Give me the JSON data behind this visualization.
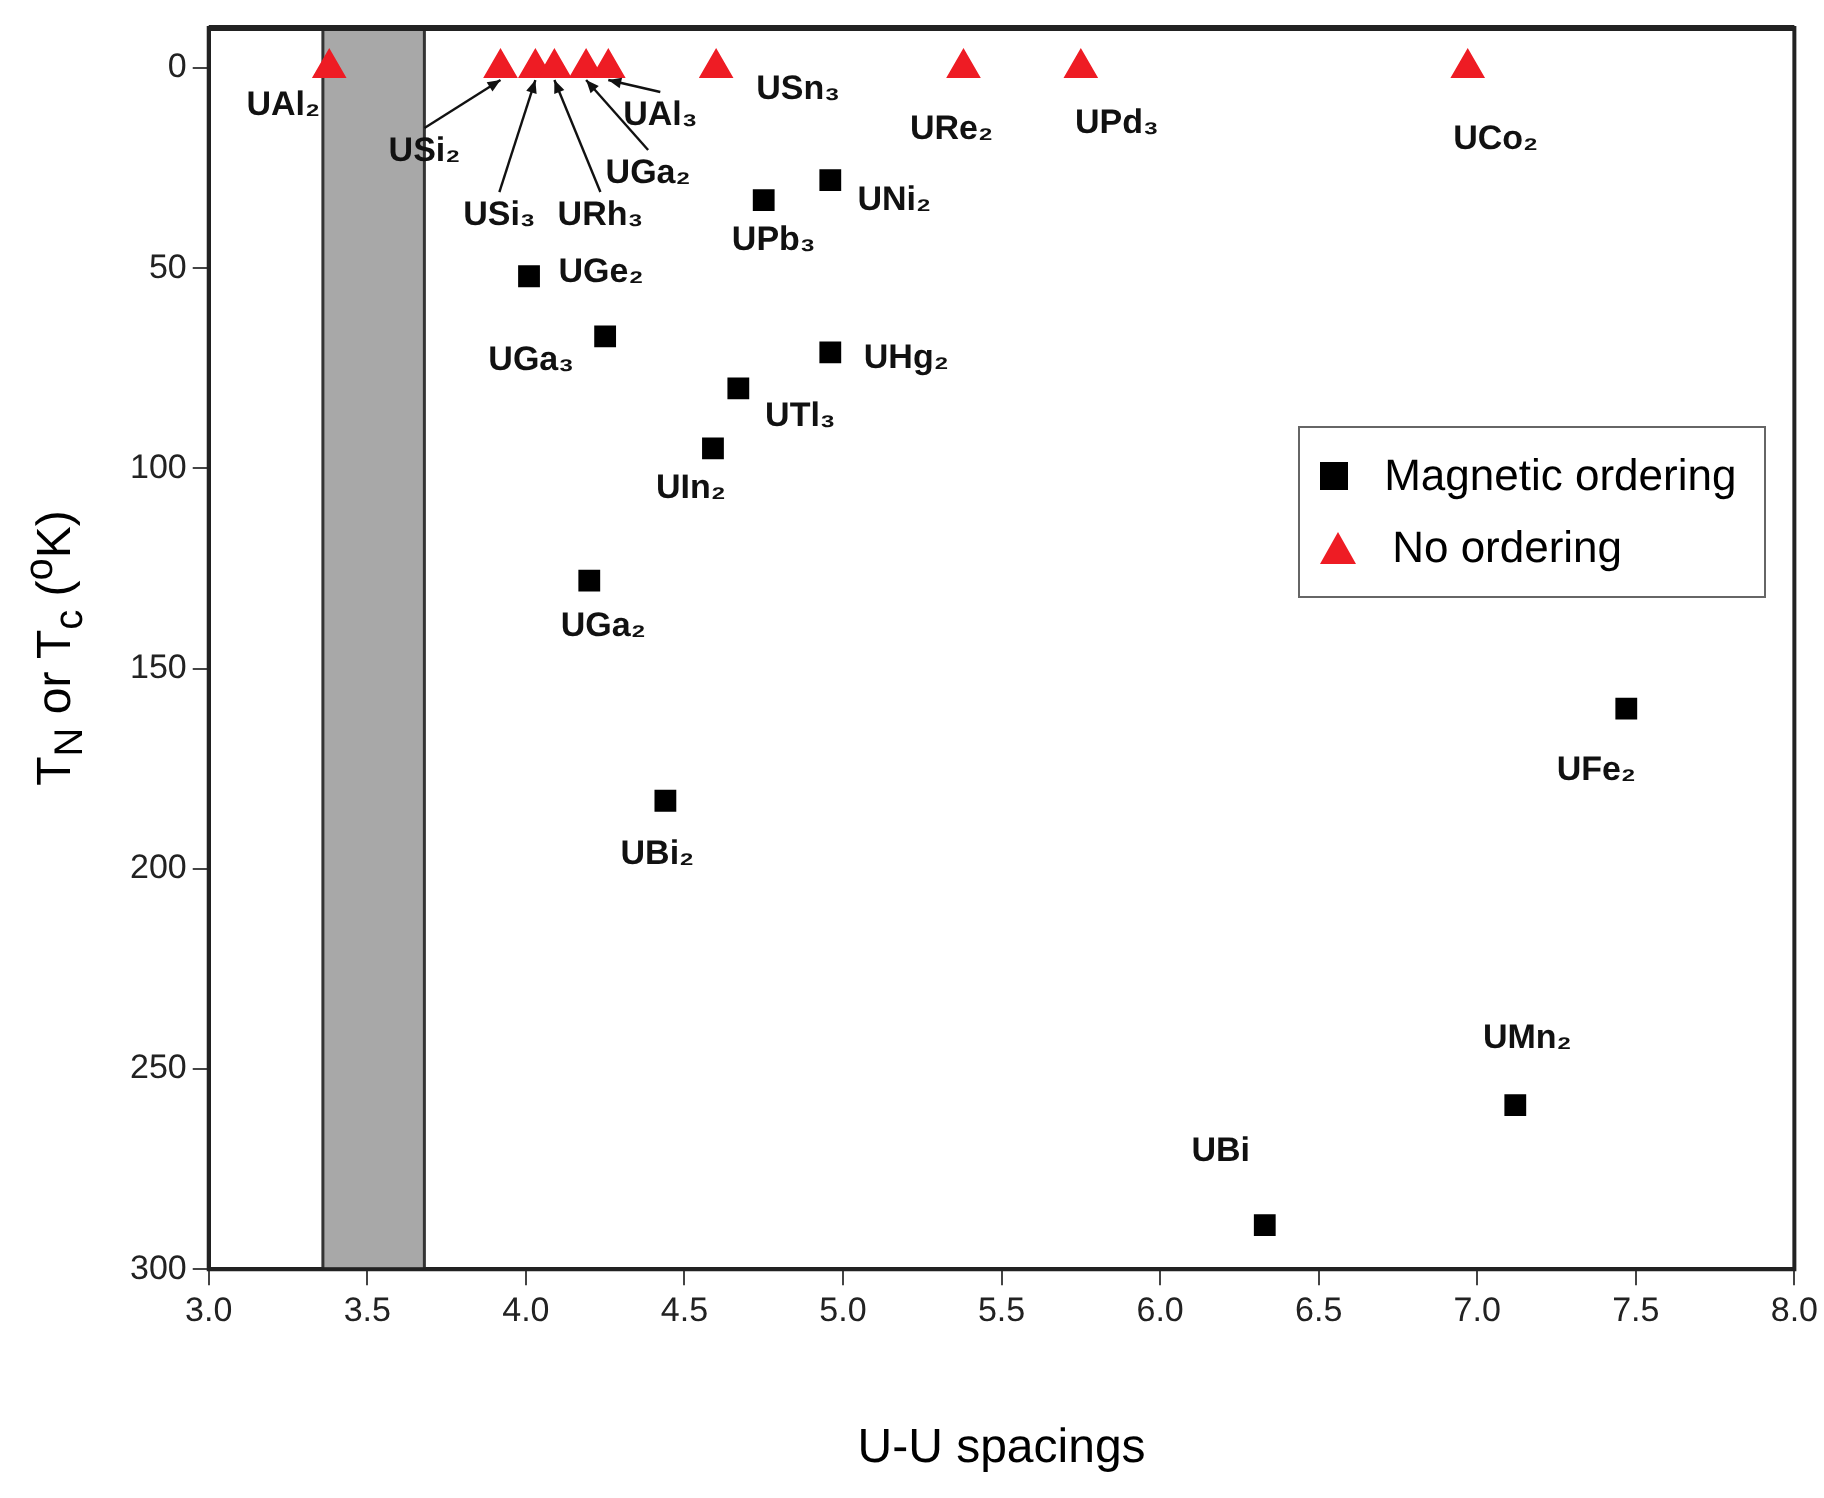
{
  "chart_data": {
    "type": "scatter",
    "xlabel": "U-U spacings",
    "ylabel": "T$_{N}$ or T$_{c}$ ($^{o}$K)",
    "xlim": [
      3.0,
      8.0
    ],
    "xticks": [
      {
        "value": 3,
        "label": "3.0"
      },
      {
        "value": 3.5,
        "label": "3.5"
      },
      {
        "value": 4,
        "label": "4.0"
      },
      {
        "value": 4.5,
        "label": "4.5"
      },
      {
        "value": 5,
        "label": "5.0"
      },
      {
        "value": 5.5,
        "label": "5.5"
      },
      {
        "value": 6,
        "label": "6.0"
      },
      {
        "value": 6.5,
        "label": "6.5"
      },
      {
        "value": 7,
        "label": "7.0"
      },
      {
        "value": 7.5,
        "label": "7.5"
      },
      {
        "value": 8,
        "label": "8.0"
      }
    ],
    "ylim": [
      300,
      -10
    ],
    "yticks": [
      0,
      50,
      100,
      150,
      200,
      250,
      300
    ],
    "grid": false,
    "legend": "right",
    "series": [
      {
        "name": "Magnetic ordering",
        "color": "#000000",
        "marker": "square",
        "x": [
          4.96,
          4.75,
          4.01,
          4.25,
          4.96,
          4.67,
          4.59,
          4.2,
          4.44,
          7.47,
          7.12,
          6.33
        ],
        "values": [
          28,
          33,
          52,
          67,
          71,
          80,
          95,
          128,
          183,
          160,
          259,
          289
        ]
      },
      {
        "name": "No ordering",
        "color": "#ee1c24",
        "marker": "triangle",
        "x": [
          3.38,
          3.92,
          4.03,
          4.09,
          4.19,
          4.26,
          4.6,
          5.38,
          5.75,
          6.97
        ],
        "values": [
          0,
          0,
          0,
          0,
          0,
          0,
          0,
          0,
          0,
          0
        ]
      }
    ],
    "bands": [
      {
        "axis": "x",
        "from": 3.36,
        "to": 3.68,
        "color": "#a8a8a8"
      }
    ],
    "annotations": [
      {
        "text": "UAl₂",
        "x": 3.38,
        "y": 0
      },
      {
        "text": "USi₂",
        "x": 3.92,
        "y": 0
      },
      {
        "text": "USi₃",
        "x": 4.03,
        "y": 0
      },
      {
        "text": "URh₃",
        "x": 4.09,
        "y": 0
      },
      {
        "text": "UGa₂",
        "x": 4.19,
        "y": 0
      },
      {
        "text": "UAl₃",
        "x": 4.26,
        "y": 0
      },
      {
        "text": "USn₃",
        "x": 4.6,
        "y": 0
      },
      {
        "text": "URe₂",
        "x": 5.38,
        "y": 0
      },
      {
        "text": "UPd₃",
        "x": 5.75,
        "y": 0
      },
      {
        "text": "UCo₂",
        "x": 6.97,
        "y": 0
      },
      {
        "text": "UNi₂",
        "x": 4.96,
        "y": 28
      },
      {
        "text": "UPb₃",
        "x": 4.75,
        "y": 33
      },
      {
        "text": "UGe₂",
        "x": 4.01,
        "y": 52
      },
      {
        "text": "UGa₃",
        "x": 4.25,
        "y": 67
      },
      {
        "text": "UHg₂",
        "x": 4.96,
        "y": 71
      },
      {
        "text": "UTl₃",
        "x": 4.67,
        "y": 80
      },
      {
        "text": "UIn₂",
        "x": 4.59,
        "y": 95
      },
      {
        "text": "UGa₂",
        "x": 4.2,
        "y": 128
      },
      {
        "text": "UBi₂",
        "x": 4.44,
        "y": 183
      },
      {
        "text": "UFe₂",
        "x": 7.47,
        "y": 160
      },
      {
        "text": "UMn₂",
        "x": 7.12,
        "y": 259
      },
      {
        "text": "UBi",
        "x": 6.33,
        "y": 289
      }
    ]
  }
}
